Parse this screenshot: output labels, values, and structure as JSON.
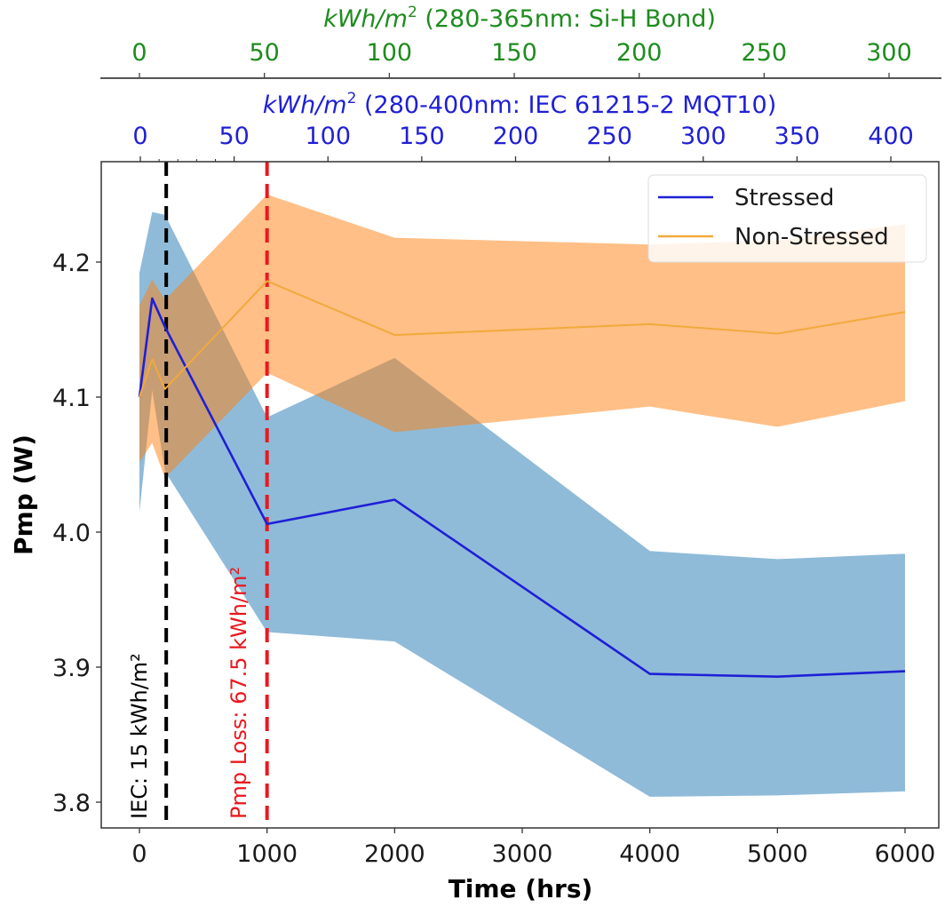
{
  "chart_data": {
    "type": "line",
    "title": "",
    "xlabel": "Time (hrs)",
    "ylabel": "Pmp (W)",
    "xlim": [
      -300,
      6300
    ],
    "ylim": [
      3.78,
      4.275
    ],
    "x_ticks": [
      "0",
      "1000",
      "2000",
      "3000",
      "4000",
      "5000",
      "6000"
    ],
    "x_tick_values": [
      0,
      1000,
      2000,
      3000,
      4000,
      5000,
      6000
    ],
    "y_ticks": [
      "3.8",
      "3.9",
      "4.0",
      "4.1",
      "4.2"
    ],
    "y_tick_values": [
      3.8,
      3.9,
      4.0,
      4.1,
      4.2
    ],
    "grid": false,
    "legend_position": "top-right",
    "x": [
      0,
      100,
      200,
      1000,
      2000,
      4000,
      5000,
      6000
    ],
    "series": [
      {
        "name": "Stressed",
        "color": "#1f1fd6",
        "band_color": "#8fb8da",
        "values": [
          4.1,
          4.173,
          4.152,
          4.006,
          4.024,
          3.895,
          3.893,
          3.897
        ],
        "upper": [
          4.192,
          4.237,
          4.235,
          4.085,
          4.129,
          3.986,
          3.98,
          3.984
        ],
        "lower": [
          4.015,
          4.105,
          4.045,
          3.926,
          3.919,
          3.804,
          3.805,
          3.808
        ]
      },
      {
        "name": "Non-Stressed",
        "color": "#f2a93b",
        "band_color": "#fbbd8c",
        "values": [
          4.1,
          4.128,
          4.106,
          4.186,
          4.146,
          4.154,
          4.147,
          4.163
        ],
        "upper": [
          4.168,
          4.187,
          4.172,
          4.25,
          4.218,
          4.213,
          4.216,
          4.228
        ],
        "lower": [
          4.052,
          4.066,
          4.04,
          4.118,
          4.074,
          4.093,
          4.078,
          4.097
        ]
      }
    ],
    "vlines": [
      {
        "x": 210,
        "color": "#000000",
        "style": "dashed",
        "label": "IEC: 15 kWh/m²"
      },
      {
        "x": 1000,
        "color": "#e8191e",
        "style": "dashed",
        "label": "Pmp Loss: 67.5 kWh/m²"
      }
    ],
    "secondary_x_axes": [
      {
        "title": "kWh/m² (280-400nm: IEC 61215-2 MQT10)",
        "title_prefix": "kWh/m",
        "title_sup": "2",
        "title_suffix": " (280-400nm: IEC 61215-2 MQT10)",
        "color": "#1f1fd6",
        "ticks": [
          "0",
          "50",
          "100",
          "150",
          "200",
          "250",
          "300",
          "350",
          "400"
        ],
        "tick_values": [
          0,
          50,
          100,
          150,
          200,
          250,
          300,
          350,
          400
        ],
        "range": [
          0,
          400
        ]
      },
      {
        "title": "kWh/m² (280-365nm: Si-H Bond)",
        "title_prefix": "kWh/m",
        "title_sup": "2",
        "title_suffix": " (280-365nm: Si-H Bond)",
        "color": "#1e8c1e",
        "ticks": [
          "0",
          "50",
          "100",
          "150",
          "200",
          "250",
          "300"
        ],
        "tick_values": [
          0,
          50,
          100,
          150,
          200,
          250,
          300
        ],
        "range": [
          0,
          300
        ]
      }
    ]
  }
}
